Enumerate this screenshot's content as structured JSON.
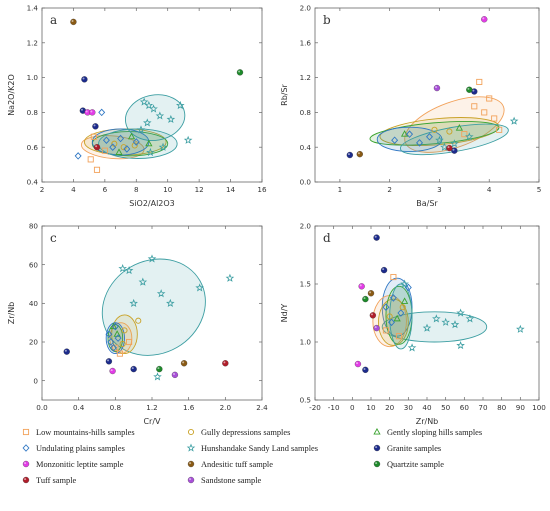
{
  "groups": [
    {
      "key": "lm",
      "label": "Low mountains-hills samples",
      "marker": "square",
      "color": "#f2a25b"
    },
    {
      "key": "gd",
      "label": "Gully depressions samples",
      "marker": "circle-open",
      "color": "#c9a227"
    },
    {
      "key": "gs",
      "label": "Gently sloping hills samples",
      "marker": "triangle",
      "color": "#3aa32f"
    },
    {
      "key": "up",
      "label": "Undulating plains samples",
      "marker": "diamond",
      "color": "#2f77c4"
    },
    {
      "key": "hs",
      "label": "Hunshandake Sandy Land samples",
      "marker": "star",
      "color": "#3c9ea2"
    },
    {
      "key": "gr",
      "label": "Granite samples",
      "marker": "ball",
      "color": "#1c2b8c"
    },
    {
      "key": "ml",
      "label": "Monzonitic leptite sample",
      "marker": "ball",
      "color": "#e23ce6"
    },
    {
      "key": "at",
      "label": "Andesitic tuff sample",
      "marker": "ball",
      "color": "#8a5a14"
    },
    {
      "key": "qz",
      "label": "Quartzite sample",
      "marker": "ball",
      "color": "#1d8a2a"
    },
    {
      "key": "tf",
      "label": "Tuff sample",
      "marker": "ball",
      "color": "#b01d2a"
    },
    {
      "key": "ss",
      "label": "Sandstone sample",
      "marker": "ball",
      "color": "#a94fd9"
    }
  ],
  "chart_data": [
    {
      "panel": "a",
      "type": "scatter",
      "xlabel": "SiO2/Al2O3",
      "ylabel": "Na2O/K2O",
      "xlim": [
        2,
        16
      ],
      "ylim": [
        0.4,
        1.4
      ],
      "xticks": [
        2,
        4,
        6,
        8,
        10,
        12,
        14,
        16
      ],
      "yticks": [
        0.4,
        0.6,
        0.8,
        1.0,
        1.2,
        1.4
      ],
      "ellipses": [
        {
          "group": "lm",
          "cx": 6.5,
          "cy": 0.6,
          "rx": 2.0,
          "ry": 0.065,
          "angle": 5
        },
        {
          "group": "gd",
          "cx": 7.3,
          "cy": 0.63,
          "rx": 2.6,
          "ry": 0.075,
          "angle": 0
        },
        {
          "group": "gs",
          "cx": 7.6,
          "cy": 0.62,
          "rx": 2.4,
          "ry": 0.07,
          "angle": 0
        },
        {
          "group": "up",
          "cx": 7.0,
          "cy": 0.63,
          "rx": 1.8,
          "ry": 0.075,
          "angle": 0
        },
        {
          "group": "hs",
          "cx": 9.2,
          "cy": 0.77,
          "rx": 1.9,
          "ry": 0.13,
          "angle": -10
        },
        {
          "group": "hs",
          "cx": 8.1,
          "cy": 0.62,
          "rx": 2.5,
          "ry": 0.085,
          "angle": 0
        }
      ],
      "points": [
        {
          "group": "lm",
          "x": 5.1,
          "y": 0.53
        },
        {
          "group": "lm",
          "x": 5.3,
          "y": 0.66
        },
        {
          "group": "lm",
          "x": 5.5,
          "y": 0.47
        },
        {
          "group": "lm",
          "x": 6.0,
          "y": 0.58
        },
        {
          "group": "gd",
          "x": 6.6,
          "y": 0.62
        },
        {
          "group": "gd",
          "x": 7.2,
          "y": 0.6
        },
        {
          "group": "gd",
          "x": 7.9,
          "y": 0.61
        },
        {
          "group": "gs",
          "x": 6.9,
          "y": 0.57
        },
        {
          "group": "gs",
          "x": 7.7,
          "y": 0.66
        },
        {
          "group": "gs",
          "x": 8.8,
          "y": 0.62
        },
        {
          "group": "up",
          "x": 4.3,
          "y": 0.55
        },
        {
          "group": "up",
          "x": 5.8,
          "y": 0.8
        },
        {
          "group": "up",
          "x": 6.1,
          "y": 0.64
        },
        {
          "group": "up",
          "x": 6.5,
          "y": 0.6
        },
        {
          "group": "up",
          "x": 7.0,
          "y": 0.65
        },
        {
          "group": "up",
          "x": 7.4,
          "y": 0.59
        },
        {
          "group": "up",
          "x": 8.0,
          "y": 0.63
        },
        {
          "group": "hs",
          "x": 8.5,
          "y": 0.86
        },
        {
          "group": "hs",
          "x": 8.8,
          "y": 0.84
        },
        {
          "group": "hs",
          "x": 9.1,
          "y": 0.82
        },
        {
          "group": "hs",
          "x": 9.5,
          "y": 0.78
        },
        {
          "group": "hs",
          "x": 8.7,
          "y": 0.74
        },
        {
          "group": "hs",
          "x": 10.2,
          "y": 0.76
        },
        {
          "group": "hs",
          "x": 10.8,
          "y": 0.84
        },
        {
          "group": "hs",
          "x": 8.3,
          "y": 0.7
        },
        {
          "group": "hs",
          "x": 11.3,
          "y": 0.64
        },
        {
          "group": "hs",
          "x": 8.9,
          "y": 0.57
        },
        {
          "group": "hs",
          "x": 9.7,
          "y": 0.6
        },
        {
          "group": "gr",
          "x": 4.7,
          "y": 0.99
        },
        {
          "group": "gr",
          "x": 4.6,
          "y": 0.81
        },
        {
          "group": "gr",
          "x": 5.4,
          "y": 0.72
        },
        {
          "group": "ml",
          "x": 4.9,
          "y": 0.8
        },
        {
          "group": "ml",
          "x": 5.2,
          "y": 0.8
        },
        {
          "group": "at",
          "x": 4.0,
          "y": 1.32
        },
        {
          "group": "qz",
          "x": 14.6,
          "y": 1.03
        },
        {
          "group": "tf",
          "x": 5.5,
          "y": 0.6
        }
      ]
    },
    {
      "panel": "b",
      "type": "scatter",
      "xlabel": "Ba/Sr",
      "ylabel": "Rb/Sr",
      "xlim": [
        0.5,
        5
      ],
      "ylim": [
        0,
        2.0
      ],
      "xticks": [
        1,
        2,
        3,
        4,
        5
      ],
      "yticks": [
        0,
        0.4,
        0.8,
        1.2,
        1.6,
        2.0
      ],
      "ellipses": [
        {
          "group": "lm",
          "cx": 3.3,
          "cy": 0.66,
          "rx": 1.05,
          "ry": 0.26,
          "angle": -20
        },
        {
          "group": "gd",
          "cx": 3.0,
          "cy": 0.58,
          "rx": 1.2,
          "ry": 0.15,
          "angle": -5
        },
        {
          "group": "gs",
          "cx": 2.9,
          "cy": 0.56,
          "rx": 1.3,
          "ry": 0.12,
          "angle": -5
        },
        {
          "group": "up",
          "cx": 2.4,
          "cy": 0.49,
          "rx": 0.65,
          "ry": 0.14,
          "angle": 0
        },
        {
          "group": "hs",
          "cx": 3.3,
          "cy": 0.49,
          "rx": 1.1,
          "ry": 0.14,
          "angle": -10
        }
      ],
      "points": [
        {
          "group": "lm",
          "x": 3.8,
          "y": 1.15
        },
        {
          "group": "lm",
          "x": 4.0,
          "y": 0.96
        },
        {
          "group": "lm",
          "x": 3.7,
          "y": 0.87
        },
        {
          "group": "lm",
          "x": 3.9,
          "y": 0.8
        },
        {
          "group": "lm",
          "x": 4.1,
          "y": 0.73
        },
        {
          "group": "lm",
          "x": 3.5,
          "y": 0.55
        },
        {
          "group": "lm",
          "x": 4.2,
          "y": 0.6
        },
        {
          "group": "gd",
          "x": 2.9,
          "y": 0.6
        },
        {
          "group": "gd",
          "x": 3.2,
          "y": 0.58
        },
        {
          "group": "gs",
          "x": 2.3,
          "y": 0.55
        },
        {
          "group": "gs",
          "x": 3.4,
          "y": 0.62
        },
        {
          "group": "up",
          "x": 2.1,
          "y": 0.48
        },
        {
          "group": "up",
          "x": 2.4,
          "y": 0.55
        },
        {
          "group": "up",
          "x": 2.6,
          "y": 0.45
        },
        {
          "group": "up",
          "x": 2.8,
          "y": 0.52
        },
        {
          "group": "hs",
          "x": 3.0,
          "y": 0.48
        },
        {
          "group": "hs",
          "x": 3.3,
          "y": 0.44
        },
        {
          "group": "hs",
          "x": 3.6,
          "y": 0.52
        },
        {
          "group": "hs",
          "x": 4.5,
          "y": 0.7
        },
        {
          "group": "hs",
          "x": 3.1,
          "y": 0.4
        },
        {
          "group": "gr",
          "x": 1.2,
          "y": 0.31
        },
        {
          "group": "gr",
          "x": 3.3,
          "y": 0.36
        },
        {
          "group": "gr",
          "x": 3.7,
          "y": 1.04
        },
        {
          "group": "ml",
          "x": 3.9,
          "y": 1.87
        },
        {
          "group": "at",
          "x": 1.4,
          "y": 0.32
        },
        {
          "group": "qz",
          "x": 3.6,
          "y": 1.06
        },
        {
          "group": "tf",
          "x": 3.2,
          "y": 0.39
        },
        {
          "group": "ss",
          "x": 2.95,
          "y": 1.08
        }
      ]
    },
    {
      "panel": "c",
      "type": "scatter",
      "xlabel": "Cr/V",
      "ylabel": "Zr/Nb",
      "xlim": [
        0,
        2.4
      ],
      "ylim": [
        -10,
        80
      ],
      "xticks": [
        0,
        0.4,
        0.8,
        1.2,
        1.6,
        2.0,
        2.4
      ],
      "yticks": [
        0,
        20,
        40,
        60,
        80
      ],
      "ellipses": [
        {
          "group": "hs",
          "cx": 1.22,
          "cy": 38,
          "rx": 0.58,
          "ry": 24,
          "angle": -30
        },
        {
          "group": "lm",
          "cx": 0.86,
          "cy": 22,
          "rx": 0.12,
          "ry": 8,
          "angle": 0
        },
        {
          "group": "gd",
          "cx": 0.9,
          "cy": 24,
          "rx": 0.14,
          "ry": 10,
          "angle": 0
        },
        {
          "group": "gs",
          "cx": 0.8,
          "cy": 22,
          "rx": 0.08,
          "ry": 7,
          "angle": 0
        },
        {
          "group": "up",
          "cx": 0.8,
          "cy": 22,
          "rx": 0.1,
          "ry": 8,
          "angle": 0
        }
      ],
      "points": [
        {
          "group": "lm",
          "x": 0.8,
          "y": 17
        },
        {
          "group": "lm",
          "x": 0.85,
          "y": 14
        },
        {
          "group": "lm",
          "x": 0.95,
          "y": 20
        },
        {
          "group": "gd",
          "x": 0.9,
          "y": 26
        },
        {
          "group": "gd",
          "x": 1.05,
          "y": 31
        },
        {
          "group": "gd",
          "x": 0.88,
          "y": 19
        },
        {
          "group": "gs",
          "x": 0.78,
          "y": 28
        },
        {
          "group": "gs",
          "x": 0.82,
          "y": 24
        },
        {
          "group": "up",
          "x": 0.73,
          "y": 24
        },
        {
          "group": "up",
          "x": 0.75,
          "y": 20
        },
        {
          "group": "up",
          "x": 0.78,
          "y": 17
        },
        {
          "group": "up",
          "x": 0.8,
          "y": 28
        },
        {
          "group": "up",
          "x": 0.83,
          "y": 22
        },
        {
          "group": "hs",
          "x": 0.88,
          "y": 58
        },
        {
          "group": "hs",
          "x": 0.95,
          "y": 57
        },
        {
          "group": "hs",
          "x": 1.2,
          "y": 63
        },
        {
          "group": "hs",
          "x": 1.1,
          "y": 51
        },
        {
          "group": "hs",
          "x": 1.3,
          "y": 45
        },
        {
          "group": "hs",
          "x": 1.4,
          "y": 40
        },
        {
          "group": "hs",
          "x": 1.0,
          "y": 40
        },
        {
          "group": "hs",
          "x": 1.72,
          "y": 48
        },
        {
          "group": "hs",
          "x": 2.05,
          "y": 53
        },
        {
          "group": "hs",
          "x": 1.26,
          "y": 2
        },
        {
          "group": "gr",
          "x": 0.27,
          "y": 15
        },
        {
          "group": "gr",
          "x": 0.73,
          "y": 10
        },
        {
          "group": "gr",
          "x": 1.0,
          "y": 6
        },
        {
          "group": "ml",
          "x": 0.77,
          "y": 5
        },
        {
          "group": "at",
          "x": 1.55,
          "y": 9
        },
        {
          "group": "qz",
          "x": 1.28,
          "y": 6
        },
        {
          "group": "tf",
          "x": 2.0,
          "y": 9
        },
        {
          "group": "ss",
          "x": 1.45,
          "y": 3
        }
      ]
    },
    {
      "panel": "d",
      "type": "scatter",
      "xlabel": "Zr/Nb",
      "ylabel": "Nd/Y",
      "xlim": [
        -20,
        100
      ],
      "ylim": [
        0.5,
        2.0
      ],
      "xticks": [
        -20,
        -10,
        0,
        10,
        20,
        30,
        40,
        50,
        60,
        70,
        80,
        90,
        100
      ],
      "yticks": [
        0.5,
        1.0,
        1.5,
        2.0
      ],
      "ellipses": [
        {
          "group": "hs",
          "cx": 44,
          "cy": 1.13,
          "rx": 28,
          "ry": 0.13,
          "angle": 0
        },
        {
          "group": "up",
          "cx": 24,
          "cy": 1.3,
          "rx": 8,
          "ry": 0.25,
          "angle": 0
        },
        {
          "group": "lm",
          "cx": 20,
          "cy": 1.18,
          "rx": 9,
          "ry": 0.22,
          "angle": 0
        },
        {
          "group": "gd",
          "cx": 22,
          "cy": 1.17,
          "rx": 8,
          "ry": 0.2,
          "angle": 0
        },
        {
          "group": "gs",
          "cx": 25,
          "cy": 1.23,
          "rx": 7,
          "ry": 0.25,
          "angle": 0
        },
        {
          "group": "hs",
          "cx": 26,
          "cy": 1.22,
          "rx": 6,
          "ry": 0.28,
          "angle": 0
        }
      ],
      "points": [
        {
          "group": "lm",
          "x": 22,
          "y": 1.56
        },
        {
          "group": "lm",
          "x": 18,
          "y": 1.1
        },
        {
          "group": "lm",
          "x": 25,
          "y": 1.05
        },
        {
          "group": "gd",
          "x": 20,
          "y": 1.22
        },
        {
          "group": "gd",
          "x": 27,
          "y": 1.3
        },
        {
          "group": "gs",
          "x": 24,
          "y": 1.2
        },
        {
          "group": "gs",
          "x": 28,
          "y": 1.35
        },
        {
          "group": "up",
          "x": 18,
          "y": 1.3
        },
        {
          "group": "up",
          "x": 22,
          "y": 1.38
        },
        {
          "group": "up",
          "x": 26,
          "y": 1.25
        },
        {
          "group": "up",
          "x": 30,
          "y": 1.47
        },
        {
          "group": "up",
          "x": 21,
          "y": 1.17
        },
        {
          "group": "hs",
          "x": 28,
          "y": 1.5
        },
        {
          "group": "hs",
          "x": 32,
          "y": 0.95
        },
        {
          "group": "hs",
          "x": 40,
          "y": 1.12
        },
        {
          "group": "hs",
          "x": 45,
          "y": 1.2
        },
        {
          "group": "hs",
          "x": 50,
          "y": 1.17
        },
        {
          "group": "hs",
          "x": 55,
          "y": 1.15
        },
        {
          "group": "hs",
          "x": 58,
          "y": 1.25
        },
        {
          "group": "hs",
          "x": 63,
          "y": 1.2
        },
        {
          "group": "hs",
          "x": 58,
          "y": 0.97
        },
        {
          "group": "hs",
          "x": 90,
          "y": 1.11
        },
        {
          "group": "gr",
          "x": 13,
          "y": 1.9
        },
        {
          "group": "gr",
          "x": 17,
          "y": 1.62
        },
        {
          "group": "gr",
          "x": 7,
          "y": 0.76
        },
        {
          "group": "ml",
          "x": 5,
          "y": 1.48
        },
        {
          "group": "ml",
          "x": 3,
          "y": 0.81
        },
        {
          "group": "at",
          "x": 10,
          "y": 1.42
        },
        {
          "group": "qz",
          "x": 7,
          "y": 1.37
        },
        {
          "group": "tf",
          "x": 11,
          "y": 1.23
        },
        {
          "group": "ss",
          "x": 13,
          "y": 1.12
        }
      ]
    }
  ]
}
